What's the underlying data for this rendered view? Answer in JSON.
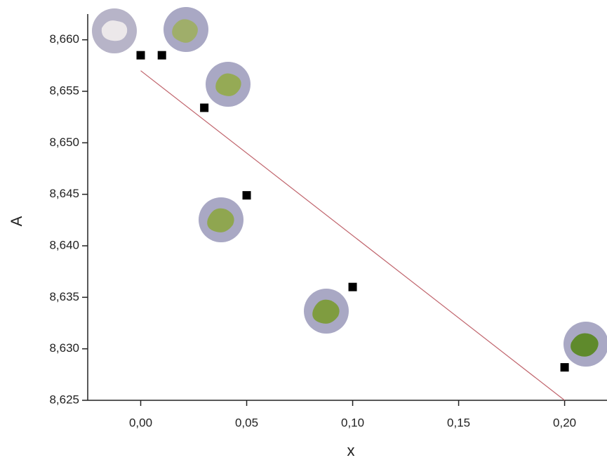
{
  "chart_data": {
    "type": "scatter",
    "x_label": "x",
    "y_label": "A",
    "points": {
      "x": [
        0,
        0.01,
        0.03,
        0.05,
        0.1,
        0.2
      ],
      "values": [
        8.6585,
        8.6585,
        8.6534,
        8.6449,
        8.636,
        8.6282
      ],
      "color": "#000000"
    },
    "fit": {
      "x": [
        0,
        0.2
      ],
      "values": [
        8.657,
        8.625
      ],
      "color": "#c0646c"
    },
    "xlim": [
      -0.025,
      0.22
    ],
    "ylim": [
      8.625,
      8.6625
    ],
    "xticks": [
      {
        "value": 0,
        "label": "0,00"
      },
      {
        "value": 0.05,
        "label": "0,05"
      },
      {
        "value": 0.1,
        "label": "0,10"
      },
      {
        "value": 0.15,
        "label": "0,15"
      },
      {
        "value": 0.2,
        "label": "0,20"
      }
    ],
    "yticks": [
      {
        "value": 8.625,
        "label": "8,625"
      },
      {
        "value": 8.63,
        "label": "8,630"
      },
      {
        "value": 8.635,
        "label": "8,635"
      },
      {
        "value": 8.64,
        "label": "8,640"
      },
      {
        "value": 8.645,
        "label": "8,645"
      },
      {
        "value": 8.65,
        "label": "8,650"
      },
      {
        "value": 8.655,
        "label": "8,655"
      },
      {
        "value": 8.66,
        "label": "8,660"
      }
    ]
  }
}
